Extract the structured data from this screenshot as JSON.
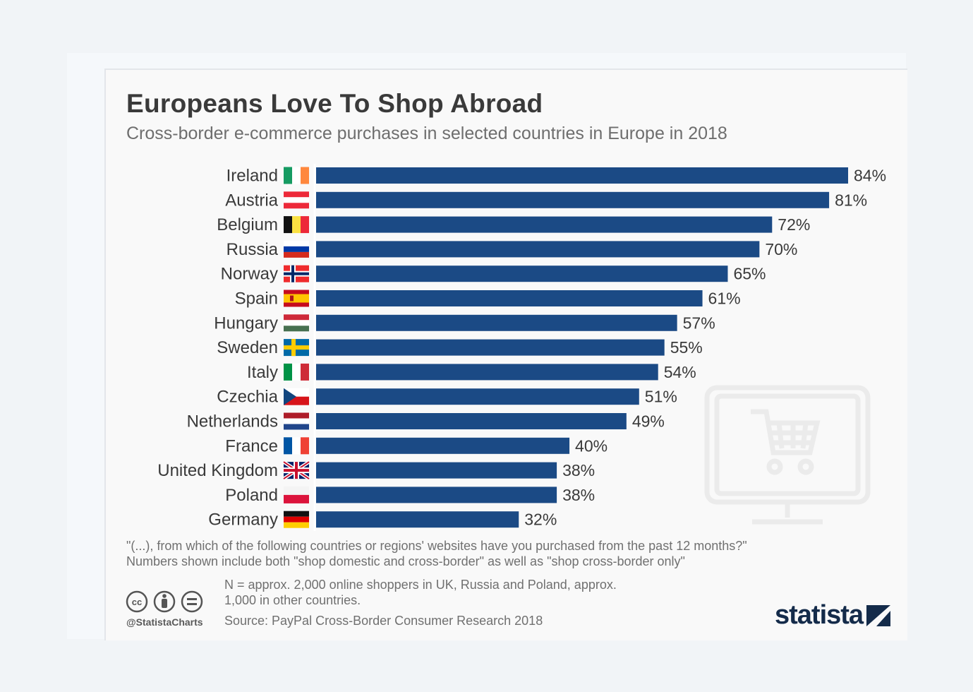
{
  "title": "Europeans Love To Shop Abroad",
  "subtitle": "Cross-border e-commerce purchases in selected countries in Europe in 2018",
  "chart_data": {
    "type": "bar",
    "orientation": "horizontal",
    "categories": [
      "Ireland",
      "Austria",
      "Belgium",
      "Russia",
      "Norway",
      "Spain",
      "Hungary",
      "Sweden",
      "Italy",
      "Czechia",
      "Netherlands",
      "France",
      "United Kingdom",
      "Poland",
      "Germany"
    ],
    "values": [
      84,
      81,
      72,
      70,
      65,
      61,
      57,
      55,
      54,
      51,
      49,
      40,
      38,
      38,
      32
    ],
    "value_labels": [
      "84%",
      "81%",
      "72%",
      "70%",
      "65%",
      "61%",
      "57%",
      "55%",
      "54%",
      "51%",
      "49%",
      "40%",
      "38%",
      "38%",
      "32%"
    ],
    "unit": "%",
    "bar_color": "#1b4a85",
    "xlim": [
      0,
      84
    ],
    "grid": false
  },
  "flags": [
    "ireland-flag",
    "austria-flag",
    "belgium-flag",
    "russia-flag",
    "norway-flag",
    "spain-flag",
    "hungary-flag",
    "sweden-flag",
    "italy-flag",
    "czechia-flag",
    "netherlands-flag",
    "france-flag",
    "united-kingdom-flag",
    "poland-flag",
    "germany-flag"
  ],
  "notes": {
    "question": "\"(...), from which of the following countries or regions' websites have you purchased from the past 12 months?\"",
    "numbers": "Numbers shown include both \"shop domestic and cross-border\" as well as \"shop cross-border only\"",
    "sample_line1": "N = approx. 2,000 online shoppers in UK, Russia and Poland, approx.",
    "sample_line2": "1,000 in other countries.",
    "source": "Source: PayPal Cross-Border Consumer Research 2018"
  },
  "footer": {
    "handle": "@StatistaCharts",
    "logo": "statista",
    "license_icons": [
      "cc-icon",
      "attribution-icon",
      "no-derivatives-icon"
    ]
  },
  "watermark_icon": "shopping-cart-monitor-icon"
}
